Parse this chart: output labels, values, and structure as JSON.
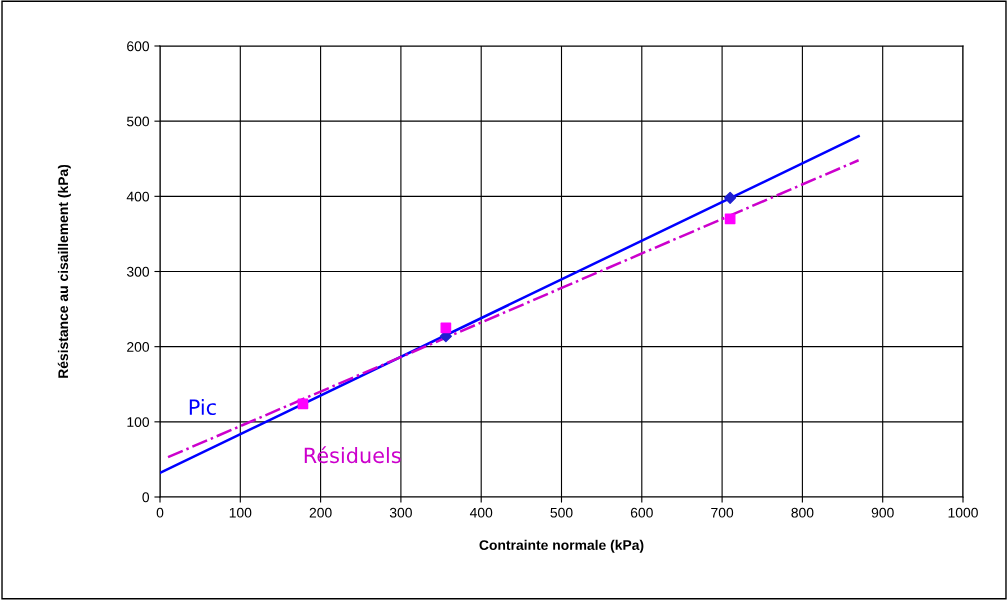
{
  "chart_data": {
    "type": "scatter",
    "xlabel": "Contrainte normale (kPa)",
    "ylabel": "Résistance au cisaillement (kPa)",
    "xlim": [
      0,
      1000
    ],
    "xticks": [
      0,
      100,
      200,
      300,
      400,
      500,
      600,
      700,
      800,
      900,
      1000
    ],
    "ylim": [
      0,
      600
    ],
    "yticks": [
      0,
      100,
      200,
      300,
      400,
      500,
      600
    ],
    "grid": true,
    "series": [
      {
        "color": "#1f1fd0",
        "marker": "diamond",
        "x": [
          356,
          710
        ],
        "values": [
          214,
          398
        ]
      },
      {
        "color": "#ff00ff",
        "marker": "square",
        "x": [
          178,
          356,
          710
        ],
        "values": [
          124,
          225,
          370
        ]
      },
      {
        "type": "line",
        "name": "Pic",
        "color": "#0000ff",
        "line_style": "solid",
        "marker": "none",
        "x": [
          0,
          870
        ],
        "values": [
          32,
          480
        ]
      },
      {
        "type": "line",
        "name": "Résiduels",
        "color": "#cc00cc",
        "line_style": "dashdot",
        "marker": "none",
        "x": [
          10,
          870
        ],
        "values": [
          53,
          448
        ]
      }
    ]
  }
}
